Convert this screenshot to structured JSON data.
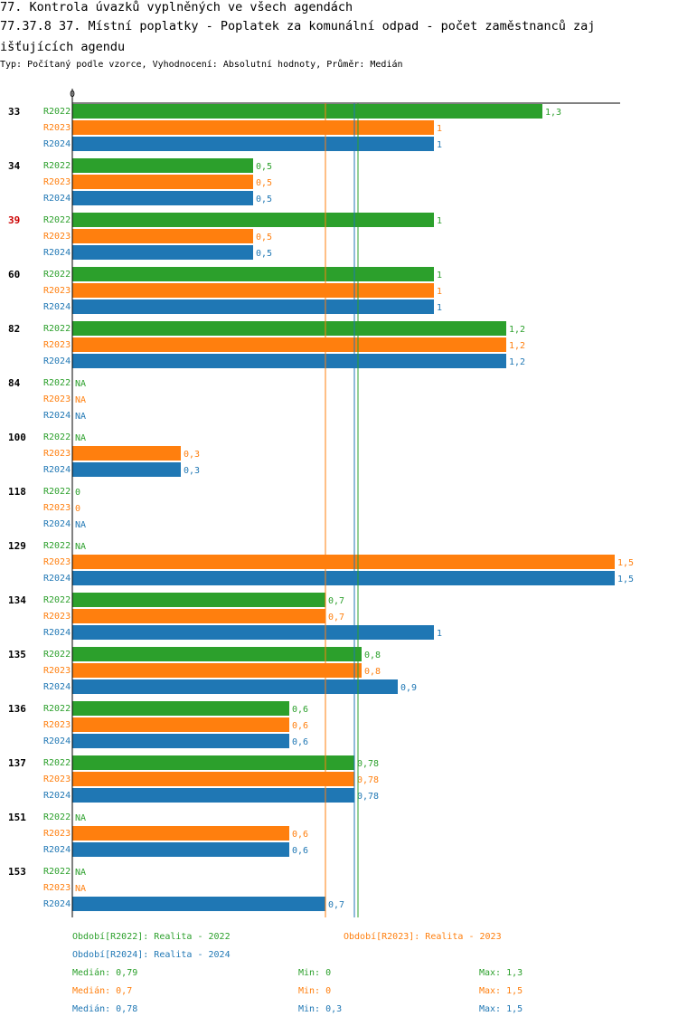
{
  "header": {
    "title_line1": "77. Kontrola úvazků vyplněných ve všech agendách",
    "title_line2": "77.37.8 37. Místní poplatky - Poplatek za komunální odpad - počet zaměstnanců zaj",
    "title_line3": "išťujících agendu",
    "subtitle": "Typ: Počítaný podle vzorce, Vyhodnocení: Absolutní hodnoty, Průměr: Medián"
  },
  "colors": {
    "R2022": "#2ca02c",
    "R2023": "#ff7f0e",
    "R2024": "#1f77b4",
    "highlight": "#cc0000",
    "axis": "#000000"
  },
  "chart_data": {
    "type": "bar",
    "orientation": "horizontal",
    "axis_zero_label": "0",
    "xlim": [
      0,
      1.5
    ],
    "series_names": [
      "R2022",
      "R2023",
      "R2024"
    ],
    "groups": [
      {
        "label": "33",
        "highlight": false,
        "values": [
          1.3,
          1,
          1
        ],
        "labels": [
          "1,3",
          "1",
          "1"
        ]
      },
      {
        "label": "34",
        "highlight": false,
        "values": [
          0.5,
          0.5,
          0.5
        ],
        "labels": [
          "0,5",
          "0,5",
          "0,5"
        ]
      },
      {
        "label": "39",
        "highlight": true,
        "values": [
          1,
          0.5,
          0.5
        ],
        "labels": [
          "1",
          "0,5",
          "0,5"
        ]
      },
      {
        "label": "60",
        "highlight": false,
        "values": [
          1,
          1,
          1
        ],
        "labels": [
          "1",
          "1",
          "1"
        ]
      },
      {
        "label": "82",
        "highlight": false,
        "values": [
          1.2,
          1.2,
          1.2
        ],
        "labels": [
          "1,2",
          "1,2",
          "1,2"
        ]
      },
      {
        "label": "84",
        "highlight": false,
        "values": [
          null,
          null,
          null
        ],
        "labels": [
          "NA",
          "NA",
          "NA"
        ]
      },
      {
        "label": "100",
        "highlight": false,
        "values": [
          null,
          0.3,
          0.3
        ],
        "labels": [
          "NA",
          "0,3",
          "0,3"
        ]
      },
      {
        "label": "118",
        "highlight": false,
        "values": [
          0,
          0,
          null
        ],
        "labels": [
          "0",
          "0",
          "NA"
        ]
      },
      {
        "label": "129",
        "highlight": false,
        "values": [
          null,
          1.5,
          1.5
        ],
        "labels": [
          "NA",
          "1,5",
          "1,5"
        ]
      },
      {
        "label": "134",
        "highlight": false,
        "values": [
          0.7,
          0.7,
          1
        ],
        "labels": [
          "0,7",
          "0,7",
          "1"
        ]
      },
      {
        "label": "135",
        "highlight": false,
        "values": [
          0.8,
          0.8,
          0.9
        ],
        "labels": [
          "0,8",
          "0,8",
          "0,9"
        ]
      },
      {
        "label": "136",
        "highlight": false,
        "values": [
          0.6,
          0.6,
          0.6
        ],
        "labels": [
          "0,6",
          "0,6",
          "0,6"
        ]
      },
      {
        "label": "137",
        "highlight": false,
        "values": [
          0.78,
          0.78,
          0.78
        ],
        "labels": [
          "0,78",
          "0,78",
          "0,78"
        ]
      },
      {
        "label": "151",
        "highlight": false,
        "values": [
          null,
          0.6,
          0.6
        ],
        "labels": [
          "NA",
          "0,6",
          "0,6"
        ]
      },
      {
        "label": "153",
        "highlight": false,
        "values": [
          null,
          null,
          0.7
        ],
        "labels": [
          "NA",
          "NA",
          "0,7"
        ]
      }
    ],
    "medians": [
      {
        "series": "R2022",
        "value": 0.79
      },
      {
        "series": "R2023",
        "value": 0.7
      },
      {
        "series": "R2024",
        "value": 0.78
      }
    ]
  },
  "legend": {
    "r2022": "Období[R2022]: Realita - 2022",
    "r2023": "Období[R2023]: Realita - 2023",
    "r2024": "Období[R2024]: Realita - 2024"
  },
  "stats": [
    {
      "median": "Medián: 0,79",
      "min": "Min: 0",
      "max": "Max: 1,3"
    },
    {
      "median": "Medián: 0,7",
      "min": "Min: 0",
      "max": "Max: 1,5"
    },
    {
      "median": "Medián: 0,78",
      "min": "Min: 0,3",
      "max": "Max: 1,5"
    }
  ]
}
